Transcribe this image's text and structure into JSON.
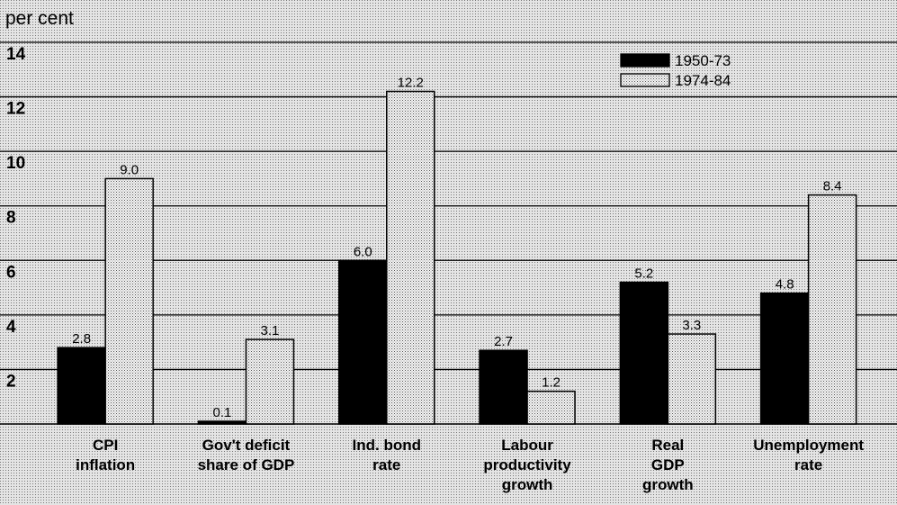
{
  "chart_data": {
    "type": "bar",
    "y_label": "per cent",
    "categories": [
      [
        "CPI",
        "inflation"
      ],
      [
        "Gov't deficit",
        "share of GDP"
      ],
      [
        "Ind. bond",
        "rate"
      ],
      [
        "Labour",
        "productivity",
        "growth"
      ],
      [
        "Real",
        "GDP",
        "growth"
      ],
      [
        "Unemployment",
        "rate"
      ]
    ],
    "series": [
      {
        "name": "1950-73",
        "color": "#000000",
        "values": [
          2.8,
          0.1,
          6.0,
          2.7,
          5.2,
          4.8
        ],
        "value_labels": [
          "2.8",
          "0.1",
          "6.0",
          "2.7",
          "5.2",
          "4.8"
        ]
      },
      {
        "name": "1974-84",
        "color": "dotted",
        "values": [
          9.0,
          3.1,
          12.2,
          1.2,
          3.3,
          8.4
        ],
        "value_labels": [
          "9.0",
          "3.1",
          "12.2",
          "1.2",
          "3.3",
          "8.4"
        ]
      }
    ],
    "ylim": [
      0,
      14
    ],
    "yticks": [
      2,
      4,
      6,
      8,
      10,
      12,
      14
    ],
    "grid": true,
    "legend": "upper right"
  }
}
